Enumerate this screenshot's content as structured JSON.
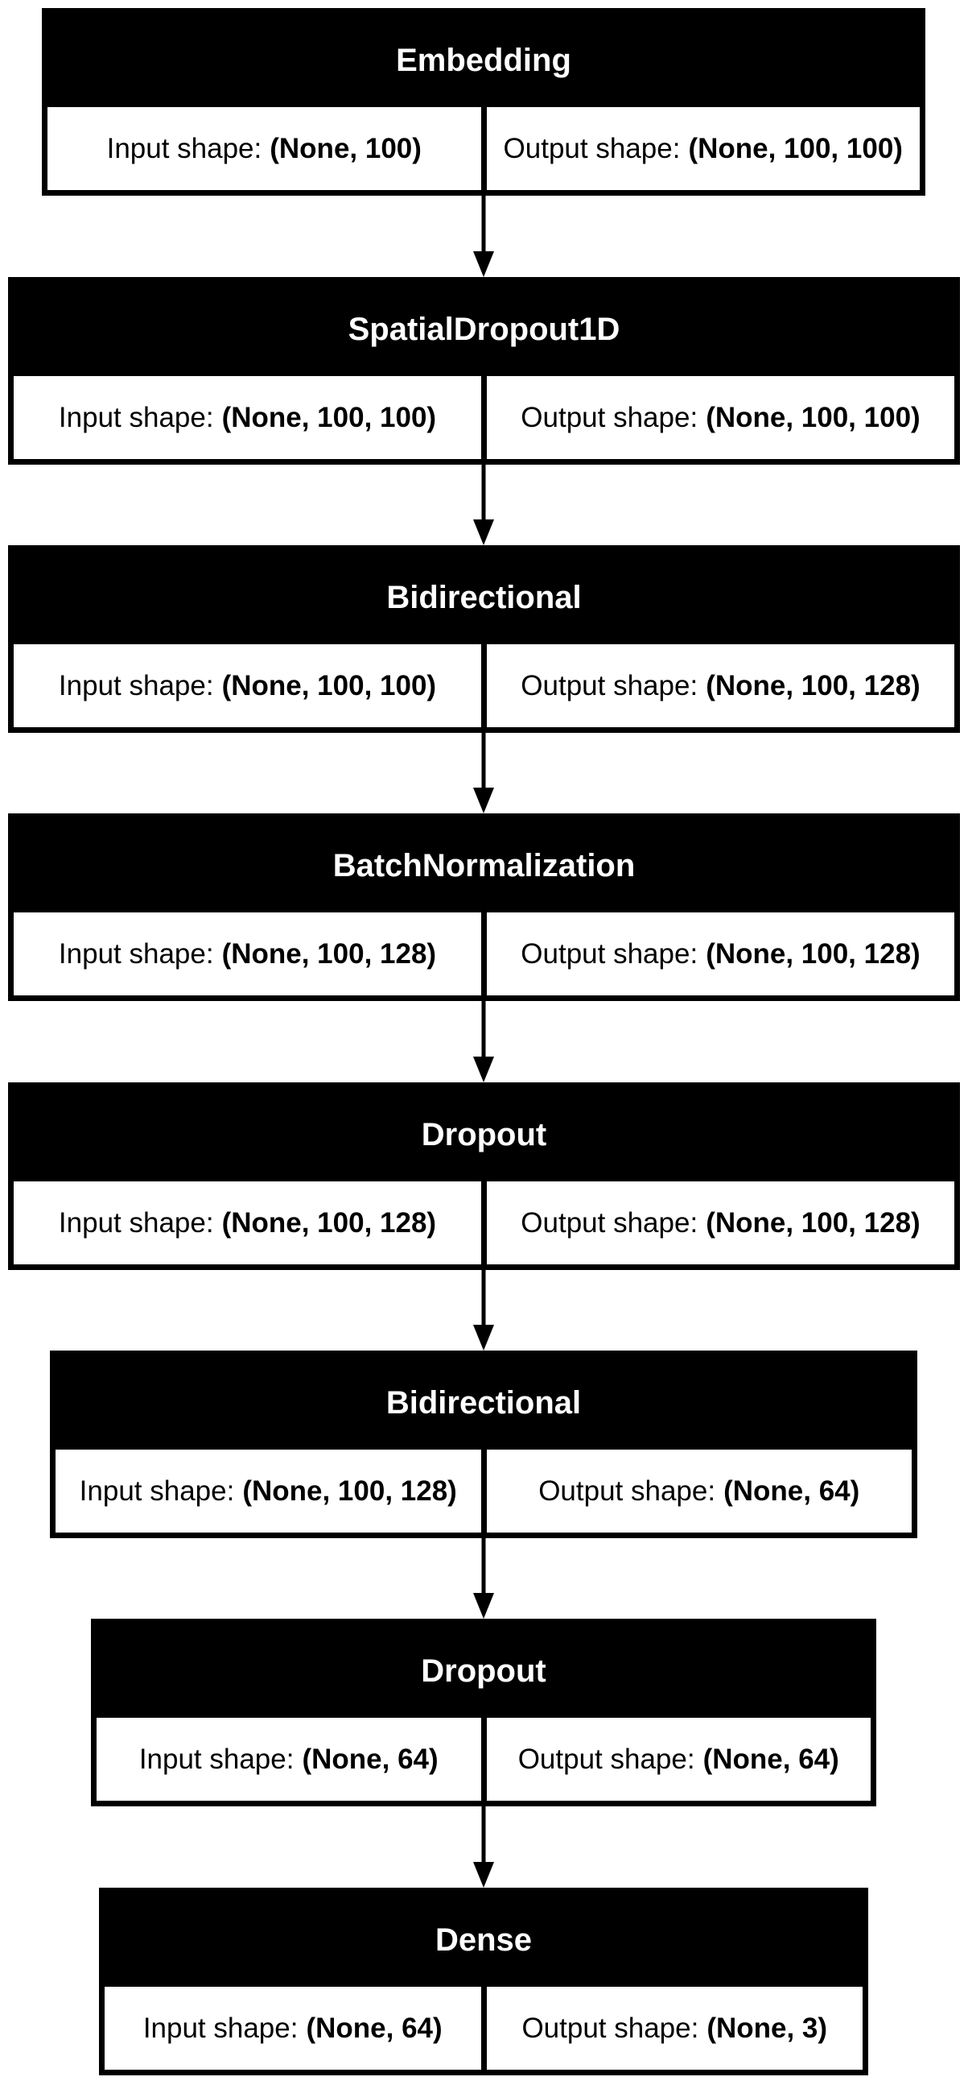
{
  "labels": {
    "input": "Input shape:",
    "output": "Output shape:"
  },
  "layers": [
    {
      "name": "Embedding",
      "input": "(None, 100)",
      "output": "(None, 100, 100)"
    },
    {
      "name": "SpatialDropout1D",
      "input": "(None, 100, 100)",
      "output": "(None, 100, 100)"
    },
    {
      "name": "Bidirectional",
      "input": "(None, 100, 100)",
      "output": "(None, 100, 128)"
    },
    {
      "name": "BatchNormalization",
      "input": "(None, 100, 128)",
      "output": "(None, 100, 128)"
    },
    {
      "name": "Dropout",
      "input": "(None, 100, 128)",
      "output": "(None, 100, 128)"
    },
    {
      "name": "Bidirectional",
      "input": "(None, 100, 128)",
      "output": "(None, 64)"
    },
    {
      "name": "Dropout",
      "input": "(None, 64)",
      "output": "(None, 64)"
    },
    {
      "name": "Dense",
      "input": "(None, 64)",
      "output": "(None, 3)"
    }
  ],
  "colors": {
    "header_bg": "#000000",
    "header_text": "#ffffff",
    "cell_bg": "#ffffff",
    "line": "#000000"
  }
}
